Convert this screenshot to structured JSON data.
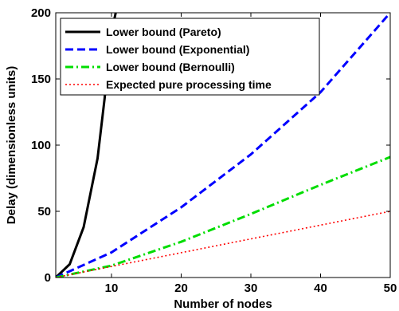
{
  "chart_data": {
    "type": "line",
    "xlabel": "Number of nodes",
    "ylabel": "Delay (dimensionless units)",
    "xlim": [
      2,
      50
    ],
    "ylim": [
      0,
      200
    ],
    "xticks": [
      10,
      20,
      30,
      40,
      50
    ],
    "yticks": [
      0,
      50,
      100,
      150,
      200
    ],
    "grid": false,
    "legend_position": "top-left",
    "series": [
      {
        "name": "Lower bound (Pareto)",
        "color": "#000000",
        "dash": "solid",
        "x": [
          2,
          4,
          6,
          8,
          9,
          10,
          10.6
        ],
        "y": [
          0,
          10,
          38,
          90,
          135,
          185,
          200
        ]
      },
      {
        "name": "Lower bound (Exponential)",
        "color": "#0000ff",
        "dash": "dashed",
        "x": [
          2,
          10,
          20,
          30,
          40,
          50
        ],
        "y": [
          0,
          19,
          53,
          93,
          140,
          200
        ]
      },
      {
        "name": "Lower bound (Bernoulli)",
        "color": "#00dd00",
        "dash": "dashdot",
        "x": [
          2,
          10,
          20,
          30,
          40,
          50
        ],
        "y": [
          0,
          9,
          27,
          48,
          70,
          91
        ]
      },
      {
        "name": "Expected pure processing time",
        "color": "#ff0000",
        "dash": "dotted",
        "x": [
          2,
          50
        ],
        "y": [
          0,
          50
        ]
      }
    ]
  }
}
